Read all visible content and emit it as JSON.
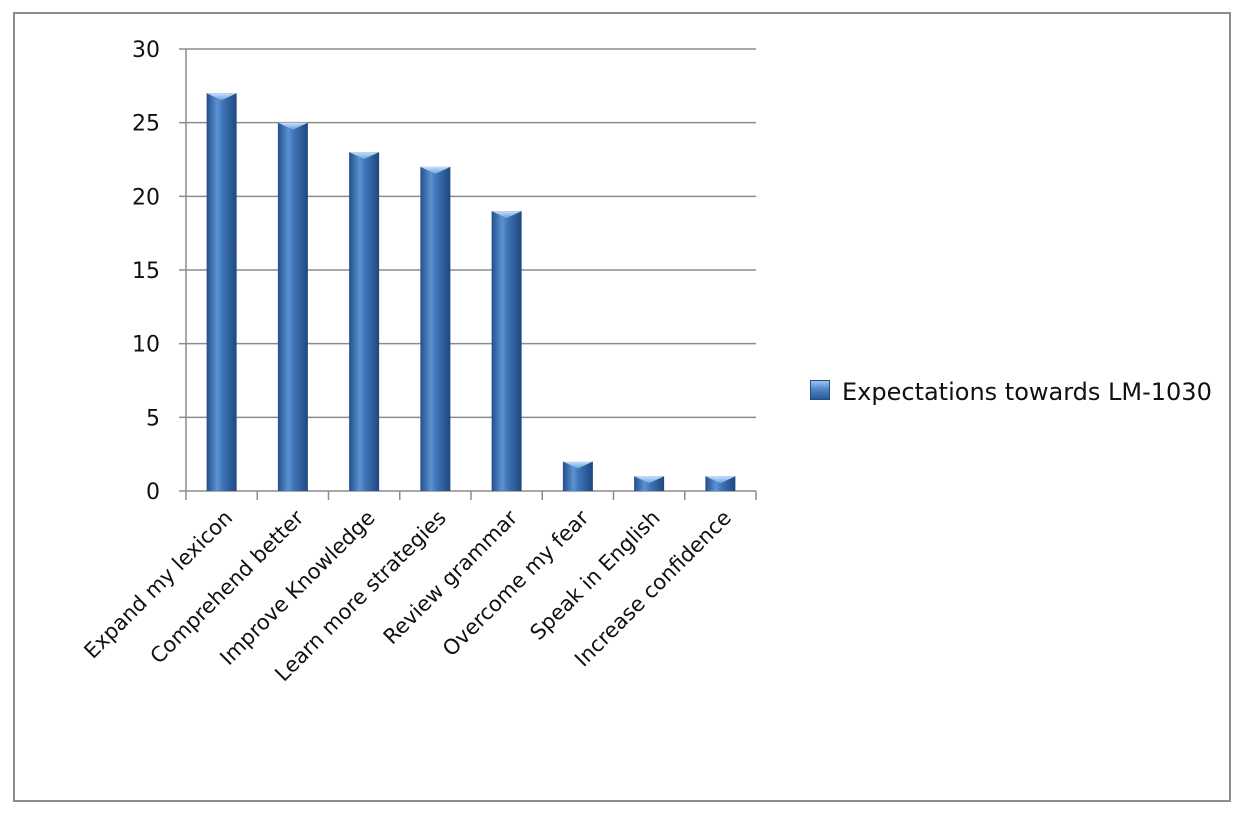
{
  "chart_data": {
    "type": "bar",
    "categories": [
      "Expand my lexicon",
      "Comprehend better",
      "Improve Knowledge",
      "Learn more strategies",
      "Review grammar",
      "Overcome my fear",
      "Speak in English",
      "Increase confidence"
    ],
    "series": [
      {
        "name": "Expectations towards  LM-1030",
        "values": [
          27,
          25,
          23,
          22,
          19,
          2,
          1,
          1
        ]
      }
    ],
    "ylim": [
      0,
      30
    ],
    "yticks": [
      0,
      5,
      10,
      15,
      20,
      25,
      30
    ],
    "grid": true,
    "legend": "right",
    "colors": {
      "bar": "#3d73b5",
      "bar_light": "#a8cdf2",
      "bar_dark": "#244f8a",
      "grid": "#8c8c8c"
    }
  }
}
